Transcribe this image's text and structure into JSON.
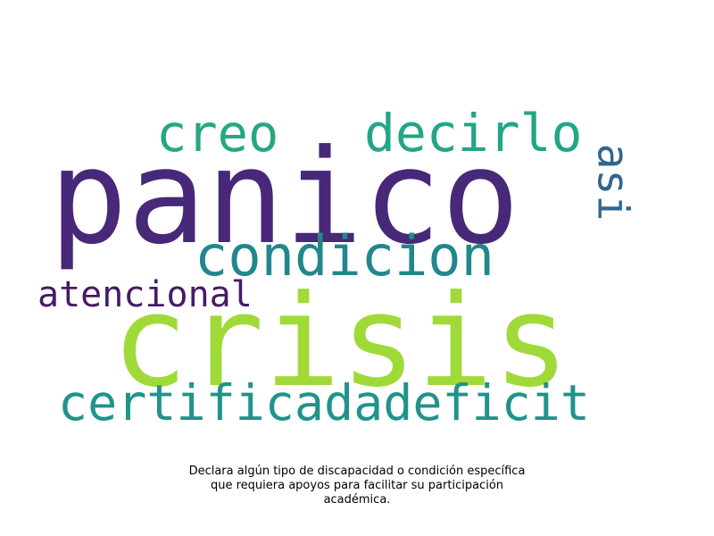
{
  "wordcloud": {
    "words": [
      {
        "id": "panico",
        "text": "panico",
        "color": "#482878"
      },
      {
        "id": "crisis",
        "text": "crisis",
        "color": "#a0da39"
      },
      {
        "id": "creo",
        "text": "creo",
        "color": "#26a784"
      },
      {
        "id": "decirlo",
        "text": "decirlo",
        "color": "#22a685"
      },
      {
        "id": "condicion",
        "text": "condicion",
        "color": "#21878c"
      },
      {
        "id": "atencional",
        "text": "atencional",
        "color": "#471a65"
      },
      {
        "id": "certificadadeficit",
        "text": "certificadadeficit",
        "color": "#20938b"
      },
      {
        "id": "asi",
        "text": "asi",
        "color": "#31668e",
        "orientation": "vertical"
      }
    ]
  },
  "caption": {
    "line1": "Declara algún tipo de discapacidad o condición específica",
    "line2": "que requiera apoyos para facilitar su participación",
    "line3": "académica."
  }
}
